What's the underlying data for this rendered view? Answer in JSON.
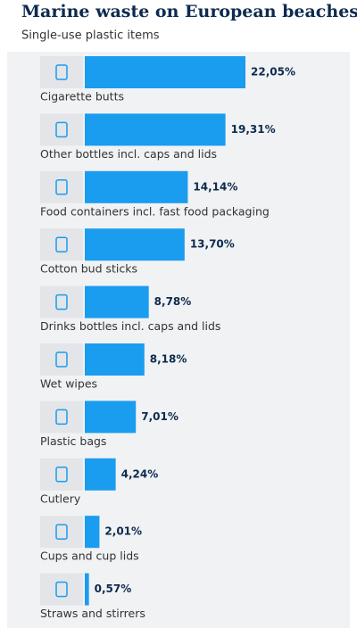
{
  "chart_data": {
    "type": "bar",
    "orientation": "horizontal",
    "title": "Marine waste on European beaches",
    "subtitle": "Single-use plastic items",
    "categories": [
      "Cigarette butts",
      "Other bottles incl. caps and lids",
      "Food containers incl. fast food packaging",
      "Cotton bud sticks",
      "Drinks bottles incl. caps and lids",
      "Wet wipes",
      "Plastic bags",
      "Cutlery",
      "Cups and cup lids",
      "Straws and stirrers"
    ],
    "values": [
      22.05,
      19.31,
      14.14,
      13.7,
      8.78,
      8.18,
      7.01,
      4.24,
      2.01,
      0.57
    ],
    "value_labels": [
      "22,05%",
      "19,31%",
      "14,14%",
      "13,70%",
      "8,78%",
      "8,18%",
      "7,01%",
      "4,24%",
      "2,01%",
      "0,57%"
    ],
    "color": "#1a9cef"
  }
}
